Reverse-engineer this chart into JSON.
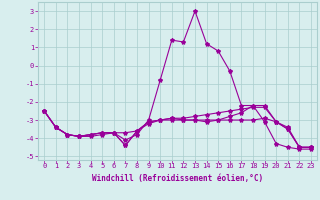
{
  "x": [
    0,
    1,
    2,
    3,
    4,
    5,
    6,
    7,
    8,
    9,
    10,
    11,
    12,
    13,
    14,
    15,
    16,
    17,
    18,
    19,
    20,
    21,
    22,
    23
  ],
  "line1": [
    -2.5,
    -3.4,
    -3.8,
    -3.9,
    -3.9,
    -3.8,
    -3.7,
    -4.1,
    -3.8,
    -3.0,
    -0.8,
    1.4,
    1.3,
    3.0,
    1.2,
    0.8,
    -0.3,
    -2.2,
    -2.2,
    -3.1,
    -4.3,
    -4.5,
    -4.6,
    -4.6
  ],
  "line2": [
    -2.5,
    -3.4,
    -3.8,
    -3.9,
    -3.8,
    -3.7,
    -3.7,
    -4.4,
    -3.6,
    -3.1,
    -3.0,
    -2.9,
    -3.0,
    -3.0,
    -3.1,
    -3.0,
    -2.8,
    -2.6,
    -2.2,
    -2.2,
    -3.1,
    -3.4,
    -4.5,
    -4.5
  ],
  "line3": [
    -2.5,
    -3.4,
    -3.8,
    -3.9,
    -3.8,
    -3.7,
    -3.7,
    -3.7,
    -3.6,
    -3.2,
    -3.0,
    -2.9,
    -2.9,
    -2.8,
    -2.7,
    -2.6,
    -2.5,
    -2.4,
    -2.3,
    -2.3,
    -3.1,
    -3.5,
    -4.5,
    -4.5
  ],
  "line4": [
    -2.5,
    -3.4,
    -3.8,
    -3.9,
    -3.8,
    -3.7,
    -3.7,
    -4.4,
    -3.6,
    -3.1,
    -3.0,
    -3.0,
    -3.0,
    -3.0,
    -3.0,
    -3.0,
    -3.0,
    -3.0,
    -3.0,
    -2.9,
    -3.1,
    -3.5,
    -4.5,
    -4.5
  ],
  "color": "#990099",
  "background": "#d8eeee",
  "grid_color": "#aacece",
  "ylim": [
    -5.2,
    3.5
  ],
  "yticks": [
    -5,
    -4,
    -3,
    -2,
    -1,
    0,
    1,
    2,
    3
  ],
  "xlabel": "Windchill (Refroidissement éolien,°C)"
}
